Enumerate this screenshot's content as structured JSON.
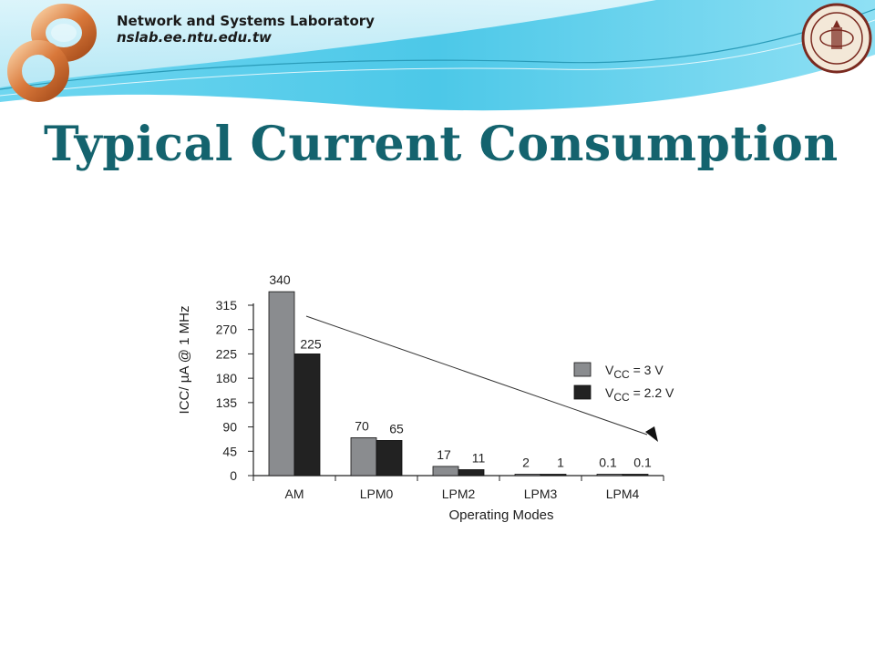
{
  "header": {
    "lab_name": "Network and Systems Laboratory",
    "lab_url": "nslab.ee.ntu.edu.tw"
  },
  "slide": {
    "title": "Typical Current Consumption"
  },
  "colors": {
    "title": "#14636e",
    "header_blue": "#4cc8e8",
    "series_3v": "#8a8c8f",
    "series_2v2": "#222222"
  },
  "chart_data": {
    "type": "bar",
    "categories": [
      "AM",
      "LPM0",
      "LPM2",
      "LPM3",
      "LPM4"
    ],
    "series": [
      {
        "name": "VCC = 3 V",
        "values": [
          340,
          70,
          17,
          2,
          0.1
        ],
        "labels": [
          "340",
          "70",
          "17",
          "2",
          "0.1"
        ]
      },
      {
        "name": "VCC = 2.2 V",
        "values": [
          225,
          65,
          11,
          1,
          0.1
        ],
        "labels": [
          "225",
          "65",
          "11",
          "1",
          "0.1"
        ]
      }
    ],
    "yticks": [
      0,
      45,
      90,
      135,
      180,
      225,
      270,
      315
    ],
    "ylim": [
      0,
      340
    ],
    "xlabel": "Operating Modes",
    "ylabel": "ICC/ µA @ 1 MHz",
    "legend": {
      "position": "right",
      "entries": [
        {
          "prefix": "V",
          "sub": "CC",
          "suffix": " = 3 V"
        },
        {
          "prefix": "V",
          "sub": "CC",
          "suffix": " = 2.2 V"
        }
      ]
    },
    "annotation": "downward trend arrow"
  }
}
